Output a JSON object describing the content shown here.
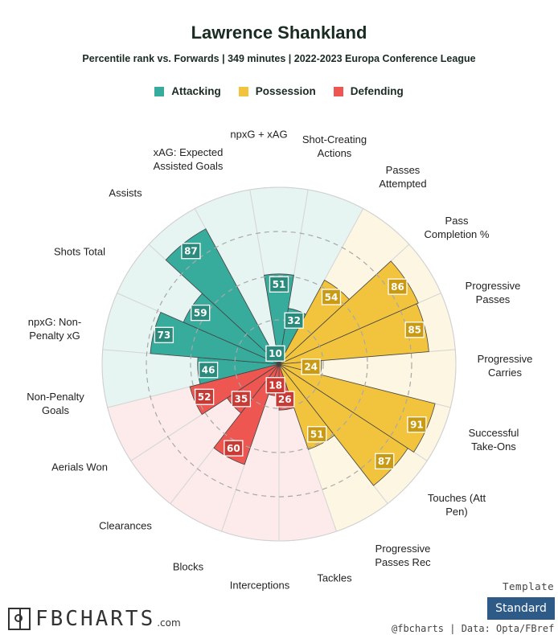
{
  "header": {
    "title": "Lawrence Shankland",
    "subtitle": "Percentile rank vs. Forwards | 349 minutes | 2022-2023 Europa Conference League"
  },
  "legend": [
    {
      "label": "Attacking",
      "color": "#37ab9c"
    },
    {
      "label": "Possession",
      "color": "#f2c43e"
    },
    {
      "label": "Defending",
      "color": "#ed5651"
    }
  ],
  "chart_data": {
    "type": "polar-bar",
    "ylim": [
      0,
      100
    ],
    "categories": [
      {
        "label": "npxG + xAG",
        "value": 51,
        "group": "Attacking"
      },
      {
        "label": "Shot-Creating Actions",
        "value": 32,
        "group": "Attacking"
      },
      {
        "label": "Passes Attempted",
        "value": 54,
        "group": "Possession"
      },
      {
        "label": "Pass Completion %",
        "value": 86,
        "group": "Possession"
      },
      {
        "label": "Progressive Passes",
        "value": 85,
        "group": "Possession"
      },
      {
        "label": "Progressive Carries",
        "value": 24,
        "group": "Possession"
      },
      {
        "label": "Successful Take-Ons",
        "value": 91,
        "group": "Possession"
      },
      {
        "label": "Touches (Att Pen)",
        "value": 87,
        "group": "Possession"
      },
      {
        "label": "Progressive Passes Rec",
        "value": 51,
        "group": "Possession"
      },
      {
        "label": "Tackles",
        "value": 26,
        "group": "Defending"
      },
      {
        "label": "Interceptions",
        "value": 18,
        "group": "Defending"
      },
      {
        "label": "Blocks",
        "value": 60,
        "group": "Defending"
      },
      {
        "label": "Clearances",
        "value": 35,
        "group": "Defending"
      },
      {
        "label": "Aerials Won",
        "value": 52,
        "group": "Defending"
      },
      {
        "label": "Non-Penalty Goals",
        "value": 46,
        "group": "Attacking"
      },
      {
        "label": "npxG: Non-Penalty xG",
        "value": 73,
        "group": "Attacking"
      },
      {
        "label": "Shots Total",
        "value": 59,
        "group": "Attacking"
      },
      {
        "label": "Assists",
        "value": 87,
        "group": "Attacking"
      },
      {
        "label": "xAG: Expected Assisted Goals",
        "value": 10,
        "group": "Attacking"
      }
    ],
    "group_colors": {
      "Attacking": {
        "bar": "#37ab9c",
        "bg": "#e6f4f2",
        "box": "#2a8a7c"
      },
      "Possession": {
        "bar": "#f2c43e",
        "bg": "#fdf6e3",
        "box": "#c99a12"
      },
      "Defending": {
        "bar": "#ed5651",
        "bg": "#fcebea",
        "box": "#c93a35"
      }
    }
  },
  "footer": {
    "template_label": "Template",
    "template_value": "Standard",
    "logo_text": "FBCHARTS",
    "logo_suffix": ".com",
    "credit": "@fbcharts | Data: Opta/FBref"
  }
}
